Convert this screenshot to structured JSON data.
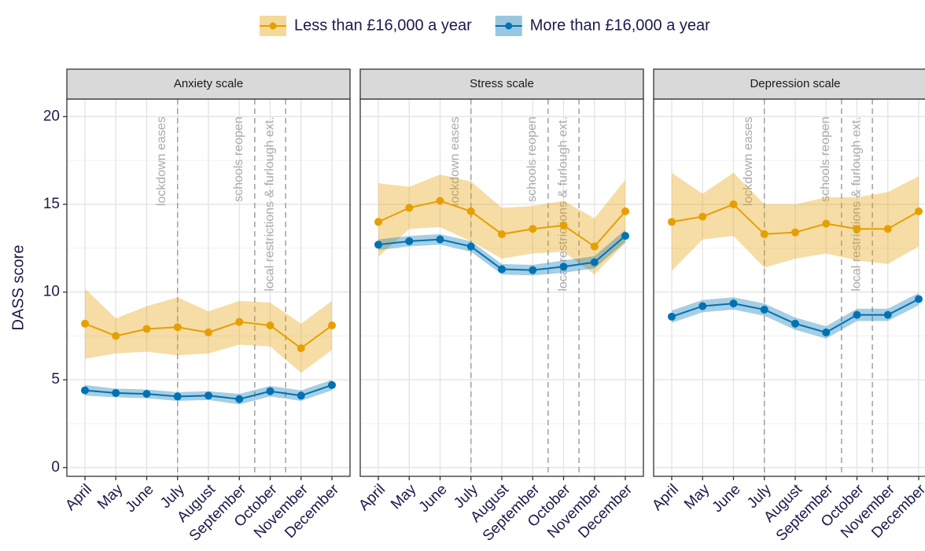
{
  "chart_data": [
    {
      "type": "line",
      "title": "Anxiety scale",
      "ylabel": "DASS score",
      "categories": [
        "April",
        "May",
        "June",
        "July",
        "August",
        "September",
        "October",
        "November",
        "December"
      ],
      "ylim": [
        -0.5,
        21
      ],
      "yticks": [
        0,
        5,
        10,
        15,
        20
      ],
      "grid": true,
      "legend": "top",
      "annotations": [
        {
          "text": "lockdown eases",
          "x": 3
        },
        {
          "text": "schools reopen",
          "x": 5.5
        },
        {
          "text": "local restrictions & furlough ext.",
          "x": 6.5
        }
      ],
      "series": [
        {
          "name": "Less than £16,000 a year",
          "color": "#E69F00",
          "values": [
            8.2,
            7.5,
            7.9,
            8.0,
            7.7,
            8.3,
            8.1,
            6.8,
            8.1
          ],
          "lower": [
            6.2,
            6.5,
            6.6,
            6.4,
            6.5,
            7.0,
            6.9,
            5.4,
            6.7
          ],
          "upper": [
            10.2,
            8.5,
            9.2,
            9.7,
            8.9,
            9.5,
            9.4,
            8.2,
            9.5
          ]
        },
        {
          "name": "More than £16,000 a year",
          "color": "#0072B2",
          "values": [
            4.4,
            4.25,
            4.2,
            4.05,
            4.1,
            3.9,
            4.35,
            4.1,
            4.7
          ],
          "lower": [
            4.1,
            4.0,
            3.95,
            3.8,
            3.85,
            3.6,
            4.05,
            3.8,
            4.4
          ],
          "upper": [
            4.7,
            4.5,
            4.45,
            4.3,
            4.35,
            4.2,
            4.65,
            4.4,
            5.0
          ]
        }
      ]
    },
    {
      "type": "line",
      "title": "Stress scale",
      "categories": [
        "April",
        "May",
        "June",
        "July",
        "August",
        "September",
        "October",
        "November",
        "December"
      ],
      "ylim": [
        -0.5,
        21
      ],
      "yticks": [
        0,
        5,
        10,
        15,
        20
      ],
      "grid": true,
      "annotations": [
        {
          "text": "lockdown eases",
          "x": 3
        },
        {
          "text": "schools reopen",
          "x": 5.5
        },
        {
          "text": "local restrictions & furlough ext.",
          "x": 6.5
        }
      ],
      "series": [
        {
          "name": "Less than £16,000 a year",
          "color": "#E69F00",
          "values": [
            14.0,
            14.8,
            15.2,
            14.6,
            13.3,
            13.6,
            13.8,
            12.6,
            14.6
          ],
          "lower": [
            12.0,
            13.6,
            13.7,
            12.9,
            11.9,
            12.2,
            12.3,
            11.0,
            12.8
          ],
          "upper": [
            16.2,
            16.0,
            16.7,
            16.3,
            14.8,
            14.9,
            15.2,
            14.2,
            16.4
          ]
        },
        {
          "name": "More than £16,000 a year",
          "color": "#0072B2",
          "values": [
            12.7,
            12.9,
            13.0,
            12.6,
            11.3,
            11.25,
            11.45,
            11.7,
            13.2
          ],
          "lower": [
            12.4,
            12.6,
            12.7,
            12.3,
            11.0,
            10.95,
            11.1,
            11.35,
            12.85
          ],
          "upper": [
            13.0,
            13.2,
            13.3,
            12.9,
            11.6,
            11.55,
            11.8,
            12.05,
            13.55
          ]
        }
      ]
    },
    {
      "type": "line",
      "title": "Depression scale",
      "categories": [
        "April",
        "May",
        "June",
        "July",
        "August",
        "September",
        "October",
        "November",
        "December"
      ],
      "ylim": [
        -0.5,
        21
      ],
      "yticks": [
        0,
        5,
        10,
        15,
        20
      ],
      "grid": true,
      "annotations": [
        {
          "text": "lockdown eases",
          "x": 3
        },
        {
          "text": "schools reopen",
          "x": 5.5
        },
        {
          "text": "local restrictions & furlough ext.",
          "x": 6.5
        }
      ],
      "series": [
        {
          "name": "Less than £16,000 a year",
          "color": "#E69F00",
          "values": [
            14.0,
            14.3,
            15.0,
            13.3,
            13.4,
            13.9,
            13.6,
            13.6,
            14.6
          ],
          "lower": [
            11.2,
            13.0,
            13.2,
            11.4,
            11.9,
            12.2,
            11.8,
            11.6,
            12.6
          ],
          "upper": [
            16.8,
            15.6,
            16.8,
            15.0,
            15.0,
            15.4,
            15.4,
            15.7,
            16.6
          ]
        },
        {
          "name": "More than £16,000 a year",
          "color": "#0072B2",
          "values": [
            8.6,
            9.2,
            9.35,
            9.0,
            8.2,
            7.7,
            8.7,
            8.7,
            9.6
          ],
          "lower": [
            8.25,
            8.85,
            9.0,
            8.65,
            7.85,
            7.35,
            8.35,
            8.35,
            9.25
          ],
          "upper": [
            8.95,
            9.55,
            9.7,
            9.35,
            8.55,
            8.05,
            9.05,
            9.05,
            9.95
          ]
        }
      ]
    }
  ]
}
